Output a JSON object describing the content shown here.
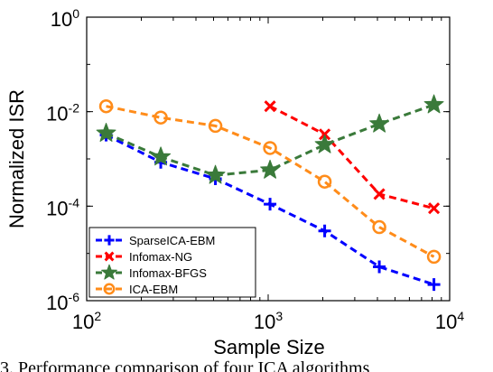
{
  "chart_data": {
    "type": "line",
    "xlabel": "Sample Size",
    "ylabel": "Normalized ISR",
    "xscale": "log",
    "yscale": "log",
    "xlim": [
      100,
      10000
    ],
    "ylim": [
      1e-06,
      1
    ],
    "x_ticks": [
      {
        "value": 100,
        "base": "10",
        "exp": "2"
      },
      {
        "value": 1000,
        "base": "10",
        "exp": "3"
      },
      {
        "value": 10000,
        "base": "10",
        "exp": "4"
      }
    ],
    "y_ticks": [
      {
        "value": 1e-06,
        "base": "10",
        "exp": "-6"
      },
      {
        "value": 0.0001,
        "base": "10",
        "exp": "-4"
      },
      {
        "value": 0.01,
        "base": "10",
        "exp": "-2"
      },
      {
        "value": 1,
        "base": "10",
        "exp": "0"
      }
    ],
    "grid": false,
    "legend_position": "bottom-left",
    "series": [
      {
        "name": "SparseICA-EBM",
        "color": "#0000ff",
        "marker": "plus",
        "x": [
          128,
          256,
          512,
          1024,
          2048,
          4096,
          8192
        ],
        "y": [
          0.0032,
          0.00085,
          0.00038,
          0.00011,
          3e-05,
          5.2e-06,
          2.2e-06
        ]
      },
      {
        "name": "Infomax-NG",
        "color": "#ff0000",
        "marker": "x",
        "x": [
          1024,
          2048,
          4096,
          8192
        ],
        "y": [
          0.013,
          0.0033,
          0.00018,
          9e-05
        ]
      },
      {
        "name": "Infomax-BFGS",
        "color": "#3a7a3a",
        "marker": "star",
        "x": [
          128,
          256,
          512,
          1024,
          2048,
          4096,
          8192
        ],
        "y": [
          0.0035,
          0.0011,
          0.00045,
          0.00058,
          0.002,
          0.0055,
          0.014
        ]
      },
      {
        "name": "ICA-EBM",
        "color": "#ff8c1a",
        "marker": "circle",
        "x": [
          128,
          256,
          512,
          1024,
          2048,
          4096,
          8192
        ],
        "y": [
          0.013,
          0.0075,
          0.005,
          0.0017,
          0.00033,
          3.6e-05,
          8.5e-06
        ]
      }
    ]
  },
  "caption": "3.  Performance comparison of four ICA algorithms"
}
